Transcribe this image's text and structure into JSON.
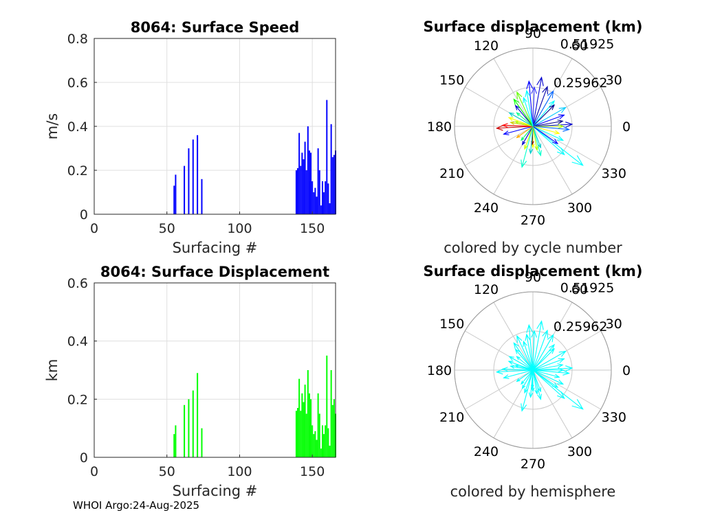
{
  "footer": "WHOI Argo:24-Aug-2025",
  "chart_data": [
    {
      "type": "bar",
      "title": "8064: Surface Speed",
      "xlabel": "Surfacing #",
      "ylabel": "m/s",
      "xlim": [
        0,
        166
      ],
      "ylim": [
        0,
        0.8
      ],
      "xticks": [
        0,
        50,
        100,
        150
      ],
      "yticks": [
        0,
        0.2,
        0.4,
        0.6,
        0.8
      ],
      "ytick_labels": [
        "0",
        "0.2",
        "0.4",
        "0.6",
        "0.8"
      ],
      "color": "#0000ff",
      "x": [
        55,
        56,
        62,
        65,
        68,
        71,
        74,
        139,
        140,
        141,
        142,
        143,
        144,
        145,
        146,
        147,
        148,
        149,
        150,
        151,
        152,
        153,
        154,
        155,
        156,
        157,
        158,
        159,
        160,
        161,
        162,
        163,
        164,
        165,
        166
      ],
      "values": [
        0.13,
        0.18,
        0.22,
        0.3,
        0.34,
        0.36,
        0.16,
        0.2,
        0.21,
        0.37,
        0.22,
        0.28,
        0.25,
        0.33,
        0.2,
        0.4,
        0.29,
        0.28,
        0.15,
        0.1,
        0.12,
        0.08,
        0.3,
        0.2,
        0.04,
        0.15,
        0.1,
        0.15,
        0.52,
        0.14,
        0.05,
        0.41,
        0.26,
        0.27,
        0.29
      ]
    },
    {
      "type": "bar",
      "title": "8064: Surface Displacement",
      "xlabel": "Surfacing #",
      "ylabel": "km",
      "xlim": [
        0,
        166
      ],
      "ylim": [
        0,
        0.6
      ],
      "xticks": [
        0,
        50,
        100,
        150
      ],
      "yticks": [
        0,
        0.2,
        0.4,
        0.6
      ],
      "ytick_labels": [
        "0",
        "0.2",
        "0.4",
        "0.6"
      ],
      "color": "#00ff00",
      "x": [
        55,
        56,
        62,
        65,
        68,
        71,
        74,
        139,
        140,
        141,
        142,
        143,
        144,
        145,
        146,
        147,
        148,
        149,
        150,
        151,
        152,
        153,
        154,
        155,
        156,
        157,
        158,
        159,
        160,
        161,
        162,
        163,
        164,
        165,
        166
      ],
      "values": [
        0.08,
        0.11,
        0.18,
        0.2,
        0.23,
        0.29,
        0.1,
        0.16,
        0.17,
        0.27,
        0.16,
        0.22,
        0.19,
        0.25,
        0.15,
        0.3,
        0.22,
        0.2,
        0.11,
        0.08,
        0.09,
        0.06,
        0.22,
        0.15,
        0.03,
        0.11,
        0.08,
        0.11,
        0.35,
        0.1,
        0.04,
        0.3,
        0.18,
        0.2,
        0.15
      ]
    },
    {
      "type": "polar_compass",
      "title": "Surface displacement (km)",
      "caption": "colored by cycle number",
      "rmax": 0.51925,
      "rticks": [
        0.25962,
        0.51925
      ],
      "rtick_labels": [
        "0.25962",
        "0.51925"
      ],
      "theta_labels": [
        "0",
        "30",
        "60",
        "90",
        "120",
        "150",
        "180",
        "210",
        "240",
        "270",
        "300",
        "330"
      ],
      "vectors": [
        {
          "angle": 80,
          "r": 0.33,
          "color": "#0000cc"
        },
        {
          "angle": 95,
          "r": 0.3,
          "color": "#0000ff"
        },
        {
          "angle": 70,
          "r": 0.28,
          "color": "#0000aa"
        },
        {
          "angle": 88,
          "r": 0.26,
          "color": "#3333ff"
        },
        {
          "angle": 100,
          "r": 0.24,
          "color": "#00ffff"
        },
        {
          "angle": 60,
          "r": 0.27,
          "color": "#0066ff"
        },
        {
          "angle": 50,
          "r": 0.22,
          "color": "#00ffff"
        },
        {
          "angle": 45,
          "r": 0.2,
          "color": "#000088"
        },
        {
          "angle": 30,
          "r": 0.25,
          "color": "#00ccff"
        },
        {
          "angle": 20,
          "r": 0.22,
          "color": "#0000ff"
        },
        {
          "angle": 10,
          "r": 0.2,
          "color": "#000088"
        },
        {
          "angle": 3,
          "r": 0.26,
          "color": "#0000cc"
        },
        {
          "angle": 0,
          "r": 0.2,
          "color": "#aaff00"
        },
        {
          "angle": 355,
          "r": 0.24,
          "color": "#0066ff"
        },
        {
          "angle": 345,
          "r": 0.18,
          "color": "#ffff00"
        },
        {
          "angle": 335,
          "r": 0.22,
          "color": "#00ffff"
        },
        {
          "angle": 322,
          "r": 0.42,
          "color": "#00ffff"
        },
        {
          "angle": 318,
          "r": 0.28,
          "color": "#00ffff"
        },
        {
          "angle": 325,
          "r": 0.2,
          "color": "#0000ff"
        },
        {
          "angle": 290,
          "r": 0.15,
          "color": "#00cccc"
        },
        {
          "angle": 285,
          "r": 0.2,
          "color": "#00ffcc"
        },
        {
          "angle": 280,
          "r": 0.16,
          "color": "#aaff00"
        },
        {
          "angle": 270,
          "r": 0.14,
          "color": "#ffff00"
        },
        {
          "angle": 268,
          "r": 0.12,
          "color": "#880000"
        },
        {
          "angle": 265,
          "r": 0.18,
          "color": "#00cccc"
        },
        {
          "angle": 255,
          "r": 0.28,
          "color": "#00ffcc"
        },
        {
          "angle": 250,
          "r": 0.16,
          "color": "#ccff00"
        },
        {
          "angle": 240,
          "r": 0.14,
          "color": "#0000cc"
        },
        {
          "angle": 230,
          "r": 0.12,
          "color": "#00ff66"
        },
        {
          "angle": 215,
          "r": 0.13,
          "color": "#ffaa00"
        },
        {
          "angle": 195,
          "r": 0.2,
          "color": "#0000ff"
        },
        {
          "angle": 183,
          "r": 0.24,
          "color": "#cc0000"
        },
        {
          "angle": 178,
          "r": 0.2,
          "color": "#ff0000"
        },
        {
          "angle": 170,
          "r": 0.15,
          "color": "#cccc00"
        },
        {
          "angle": 165,
          "r": 0.12,
          "color": "#aaff00"
        },
        {
          "angle": 160,
          "r": 0.17,
          "color": "#ffff00"
        },
        {
          "angle": 150,
          "r": 0.18,
          "color": "#00cccc"
        },
        {
          "angle": 140,
          "r": 0.14,
          "color": "#00ff88"
        },
        {
          "angle": 130,
          "r": 0.18,
          "color": "#0000cc"
        },
        {
          "angle": 125,
          "r": 0.22,
          "color": "#00ff00"
        },
        {
          "angle": 115,
          "r": 0.25,
          "color": "#66ff00"
        },
        {
          "angle": 108,
          "r": 0.2,
          "color": "#00ffff"
        }
      ]
    },
    {
      "type": "polar_compass",
      "title": "Surface displacement (km)",
      "caption": "colored by hemisphere",
      "rmax": 0.51925,
      "rticks": [
        0.25962,
        0.51925
      ],
      "rtick_labels": [
        "0.25962",
        "0.51925"
      ],
      "theta_labels": [
        "0",
        "30",
        "60",
        "90",
        "120",
        "150",
        "180",
        "210",
        "240",
        "270",
        "300",
        "330"
      ],
      "vectors": [
        {
          "angle": 80,
          "r": 0.33,
          "color": "#00ffff"
        },
        {
          "angle": 95,
          "r": 0.3,
          "color": "#00ffff"
        },
        {
          "angle": 70,
          "r": 0.28,
          "color": "#00ffff"
        },
        {
          "angle": 88,
          "r": 0.26,
          "color": "#00ffff"
        },
        {
          "angle": 100,
          "r": 0.24,
          "color": "#00ffff"
        },
        {
          "angle": 60,
          "r": 0.27,
          "color": "#00ffff"
        },
        {
          "angle": 50,
          "r": 0.22,
          "color": "#00ffff"
        },
        {
          "angle": 45,
          "r": 0.2,
          "color": "#00ffff"
        },
        {
          "angle": 30,
          "r": 0.25,
          "color": "#00ffff"
        },
        {
          "angle": 20,
          "r": 0.22,
          "color": "#00ffff"
        },
        {
          "angle": 10,
          "r": 0.2,
          "color": "#00ffff"
        },
        {
          "angle": 3,
          "r": 0.26,
          "color": "#00ffff"
        },
        {
          "angle": 0,
          "r": 0.2,
          "color": "#00ffff"
        },
        {
          "angle": 355,
          "r": 0.24,
          "color": "#00ffff"
        },
        {
          "angle": 345,
          "r": 0.18,
          "color": "#00ffff"
        },
        {
          "angle": 335,
          "r": 0.22,
          "color": "#00ffff"
        },
        {
          "angle": 322,
          "r": 0.42,
          "color": "#00ffff"
        },
        {
          "angle": 318,
          "r": 0.28,
          "color": "#00ffff"
        },
        {
          "angle": 325,
          "r": 0.2,
          "color": "#00ffff"
        },
        {
          "angle": 290,
          "r": 0.15,
          "color": "#00ffff"
        },
        {
          "angle": 285,
          "r": 0.2,
          "color": "#00ffff"
        },
        {
          "angle": 280,
          "r": 0.16,
          "color": "#00ffff"
        },
        {
          "angle": 270,
          "r": 0.14,
          "color": "#00ffff"
        },
        {
          "angle": 268,
          "r": 0.12,
          "color": "#00ffff"
        },
        {
          "angle": 265,
          "r": 0.18,
          "color": "#00ffff"
        },
        {
          "angle": 255,
          "r": 0.28,
          "color": "#00ffff"
        },
        {
          "angle": 250,
          "r": 0.16,
          "color": "#00ffff"
        },
        {
          "angle": 240,
          "r": 0.14,
          "color": "#00ffff"
        },
        {
          "angle": 230,
          "r": 0.12,
          "color": "#00ffff"
        },
        {
          "angle": 215,
          "r": 0.13,
          "color": "#00ffff"
        },
        {
          "angle": 195,
          "r": 0.2,
          "color": "#00ffff"
        },
        {
          "angle": 183,
          "r": 0.24,
          "color": "#00ffff"
        },
        {
          "angle": 178,
          "r": 0.2,
          "color": "#00ffff"
        },
        {
          "angle": 170,
          "r": 0.15,
          "color": "#00ffff"
        },
        {
          "angle": 165,
          "r": 0.12,
          "color": "#00ffff"
        },
        {
          "angle": 160,
          "r": 0.17,
          "color": "#00ffff"
        },
        {
          "angle": 150,
          "r": 0.18,
          "color": "#00ffff"
        },
        {
          "angle": 140,
          "r": 0.14,
          "color": "#00ffff"
        },
        {
          "angle": 130,
          "r": 0.18,
          "color": "#00ffff"
        },
        {
          "angle": 125,
          "r": 0.22,
          "color": "#00ffff"
        },
        {
          "angle": 115,
          "r": 0.25,
          "color": "#00ffff"
        },
        {
          "angle": 108,
          "r": 0.2,
          "color": "#00ffff"
        }
      ]
    }
  ]
}
